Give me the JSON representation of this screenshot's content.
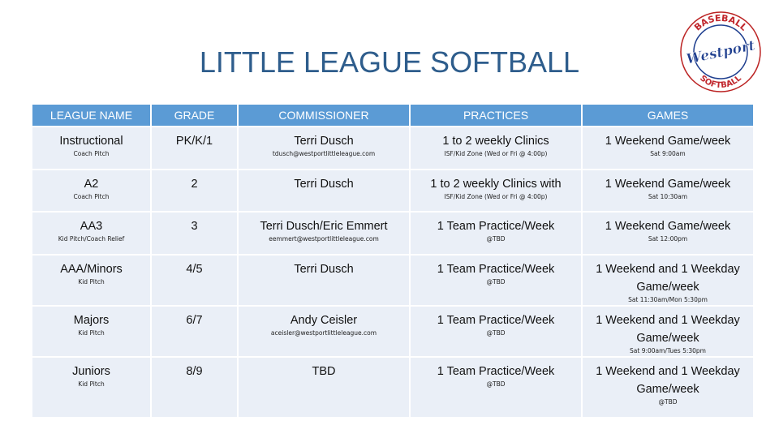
{
  "header": {
    "title": "LITTLE LEAGUE SOFTBALL",
    "logo": {
      "top": "BASEBALL",
      "middle": "Westport",
      "bottom": "SOFTBALL"
    }
  },
  "table": {
    "columns": [
      "LEAGUE NAME",
      "GRADE",
      "COMMISSIONER",
      "PRACTICES",
      "GAMES"
    ],
    "rows": [
      [
        [
          "Instructional",
          "Coach Pitch"
        ],
        [
          "PK/K/1"
        ],
        [
          "Terri Dusch",
          "tdusch@westportlittleleague.com"
        ],
        [
          "1 to 2 weekly Clinics",
          "ISF/Kid Zone (Wed or Fri @ 4:00p)"
        ],
        [
          "1 Weekend Game/week",
          "Sat 9:00am"
        ]
      ],
      [
        [
          "A2",
          "Coach Pitch"
        ],
        [
          "2"
        ],
        [
          "Terri Dusch"
        ],
        [
          "1 to 2 weekly Clinics with",
          "ISF/Kid Zone (Wed or Fri @ 4:00p)"
        ],
        [
          "1 Weekend Game/week",
          "Sat 10:30am"
        ]
      ],
      [
        [
          "AA3",
          "Kid Pitch/Coach Relief"
        ],
        [
          "3"
        ],
        [
          "Terri Dusch/Eric Emmert",
          "eemmert@westportlittleleague.com"
        ],
        [
          "1 Team  Practice/Week",
          "@TBD"
        ],
        [
          "1 Weekend Game/week",
          "Sat 12:00pm"
        ]
      ],
      [
        [
          "AAA/Minors",
          "Kid Pitch"
        ],
        [
          "4/5"
        ],
        [
          "Terri Dusch"
        ],
        [
          "1 Team  Practice/Week",
          "@TBD"
        ],
        [
          "1 Weekend and 1 Weekday Game/week",
          "Sat 11:30am/Mon 5:30pm"
        ]
      ],
      [
        [
          "Majors",
          "Kid Pitch"
        ],
        [
          "6/7"
        ],
        [
          "Andy Ceisler",
          "aceisler@westportlittleleague.com"
        ],
        [
          "1 Team  Practice/Week",
          "@TBD"
        ],
        [
          "1 Weekend and 1 Weekday Game/week",
          "Sat 9:00am/Tues 5:30pm"
        ]
      ],
      [
        [
          "Juniors",
          "Kid Pitch"
        ],
        [
          "8/9"
        ],
        [
          "TBD"
        ],
        [
          "1 Team  Practice/Week",
          "@TBD"
        ],
        [
          "1 Weekend and 1 Weekday Game/week",
          "@TBD"
        ]
      ]
    ]
  }
}
